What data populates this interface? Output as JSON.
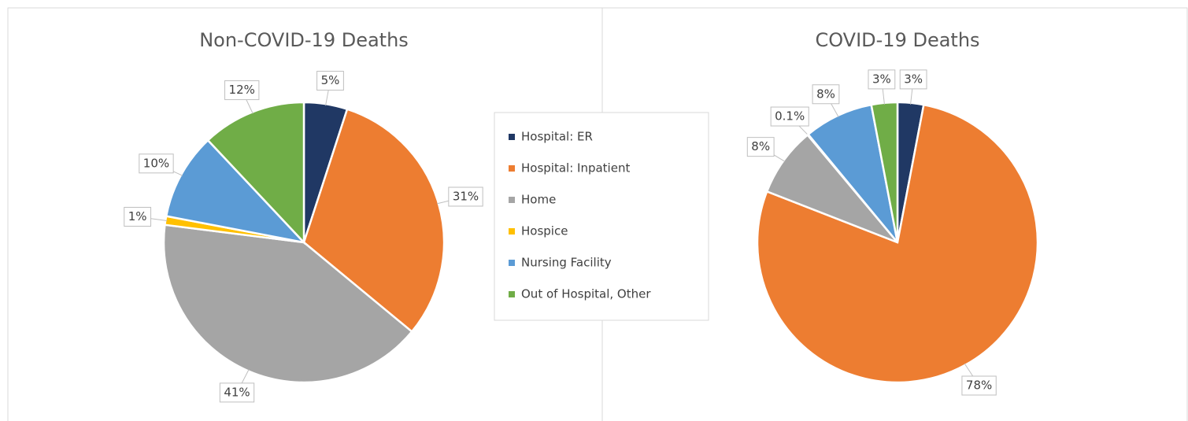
{
  "chart_data": [
    {
      "type": "pie",
      "title": "Non-COVID-19 Deaths",
      "categories": [
        "Hospital: ER",
        "Hospital: Inpatient",
        "Home",
        "Hospice",
        "Nursing Facility",
        "Out of Hospital, Other"
      ],
      "values": [
        5,
        31,
        41,
        1,
        10,
        12
      ],
      "value_labels": [
        "5%",
        "31%",
        "41%",
        "1%",
        "10%",
        "12%"
      ],
      "colors": [
        "#203864",
        "#ed7d31",
        "#a5a5a5",
        "#ffc000",
        "#5b9bd5",
        "#70ad47"
      ]
    },
    {
      "type": "pie",
      "title": "COVID-19 Deaths",
      "categories": [
        "Hospital: ER",
        "Hospital: Inpatient",
        "Home",
        "Hospice",
        "Nursing Facility",
        "Out of Hospital, Other"
      ],
      "values": [
        3,
        78,
        8,
        0.1,
        8,
        3
      ],
      "value_labels": [
        "3%",
        "78%",
        "8%",
        "0.1%",
        "8%",
        "3%"
      ],
      "colors": [
        "#203864",
        "#ed7d31",
        "#a5a5a5",
        "#ffc000",
        "#5b9bd5",
        "#70ad47"
      ]
    }
  ]
}
